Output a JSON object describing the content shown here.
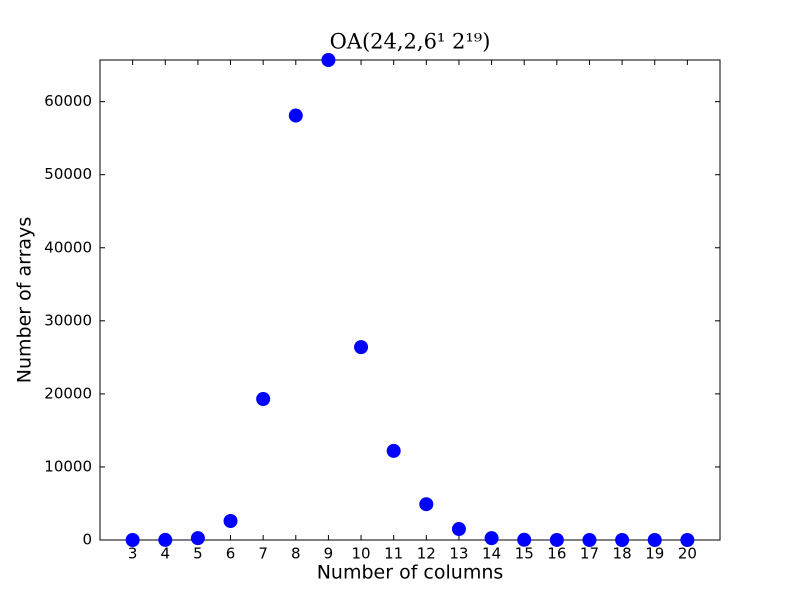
{
  "chart_data": {
    "type": "scatter",
    "title": "OA(24,2,6¹ 2¹⁹)",
    "x_label": "Number of columns",
    "y_label": "Number of arrays",
    "x": [
      3,
      4,
      5,
      6,
      7,
      8,
      9,
      10,
      11,
      12,
      13,
      14,
      15,
      16,
      17,
      18,
      19,
      20
    ],
    "values": [
      1,
      10,
      250,
      2600,
      19300,
      58100,
      65700,
      26400,
      12200,
      4900,
      1500,
      250,
      30,
      5,
      1,
      0,
      0,
      0
    ],
    "color": "#0000ff",
    "xlim": [
      2,
      21
    ],
    "xticks": [
      3,
      4,
      5,
      6,
      7,
      8,
      9,
      10,
      11,
      12,
      13,
      14,
      15,
      16,
      17,
      18,
      19,
      20
    ],
    "ylim": [
      0,
      65700
    ],
    "yticks": [
      0,
      10000,
      20000,
      30000,
      40000,
      50000,
      60000
    ]
  }
}
